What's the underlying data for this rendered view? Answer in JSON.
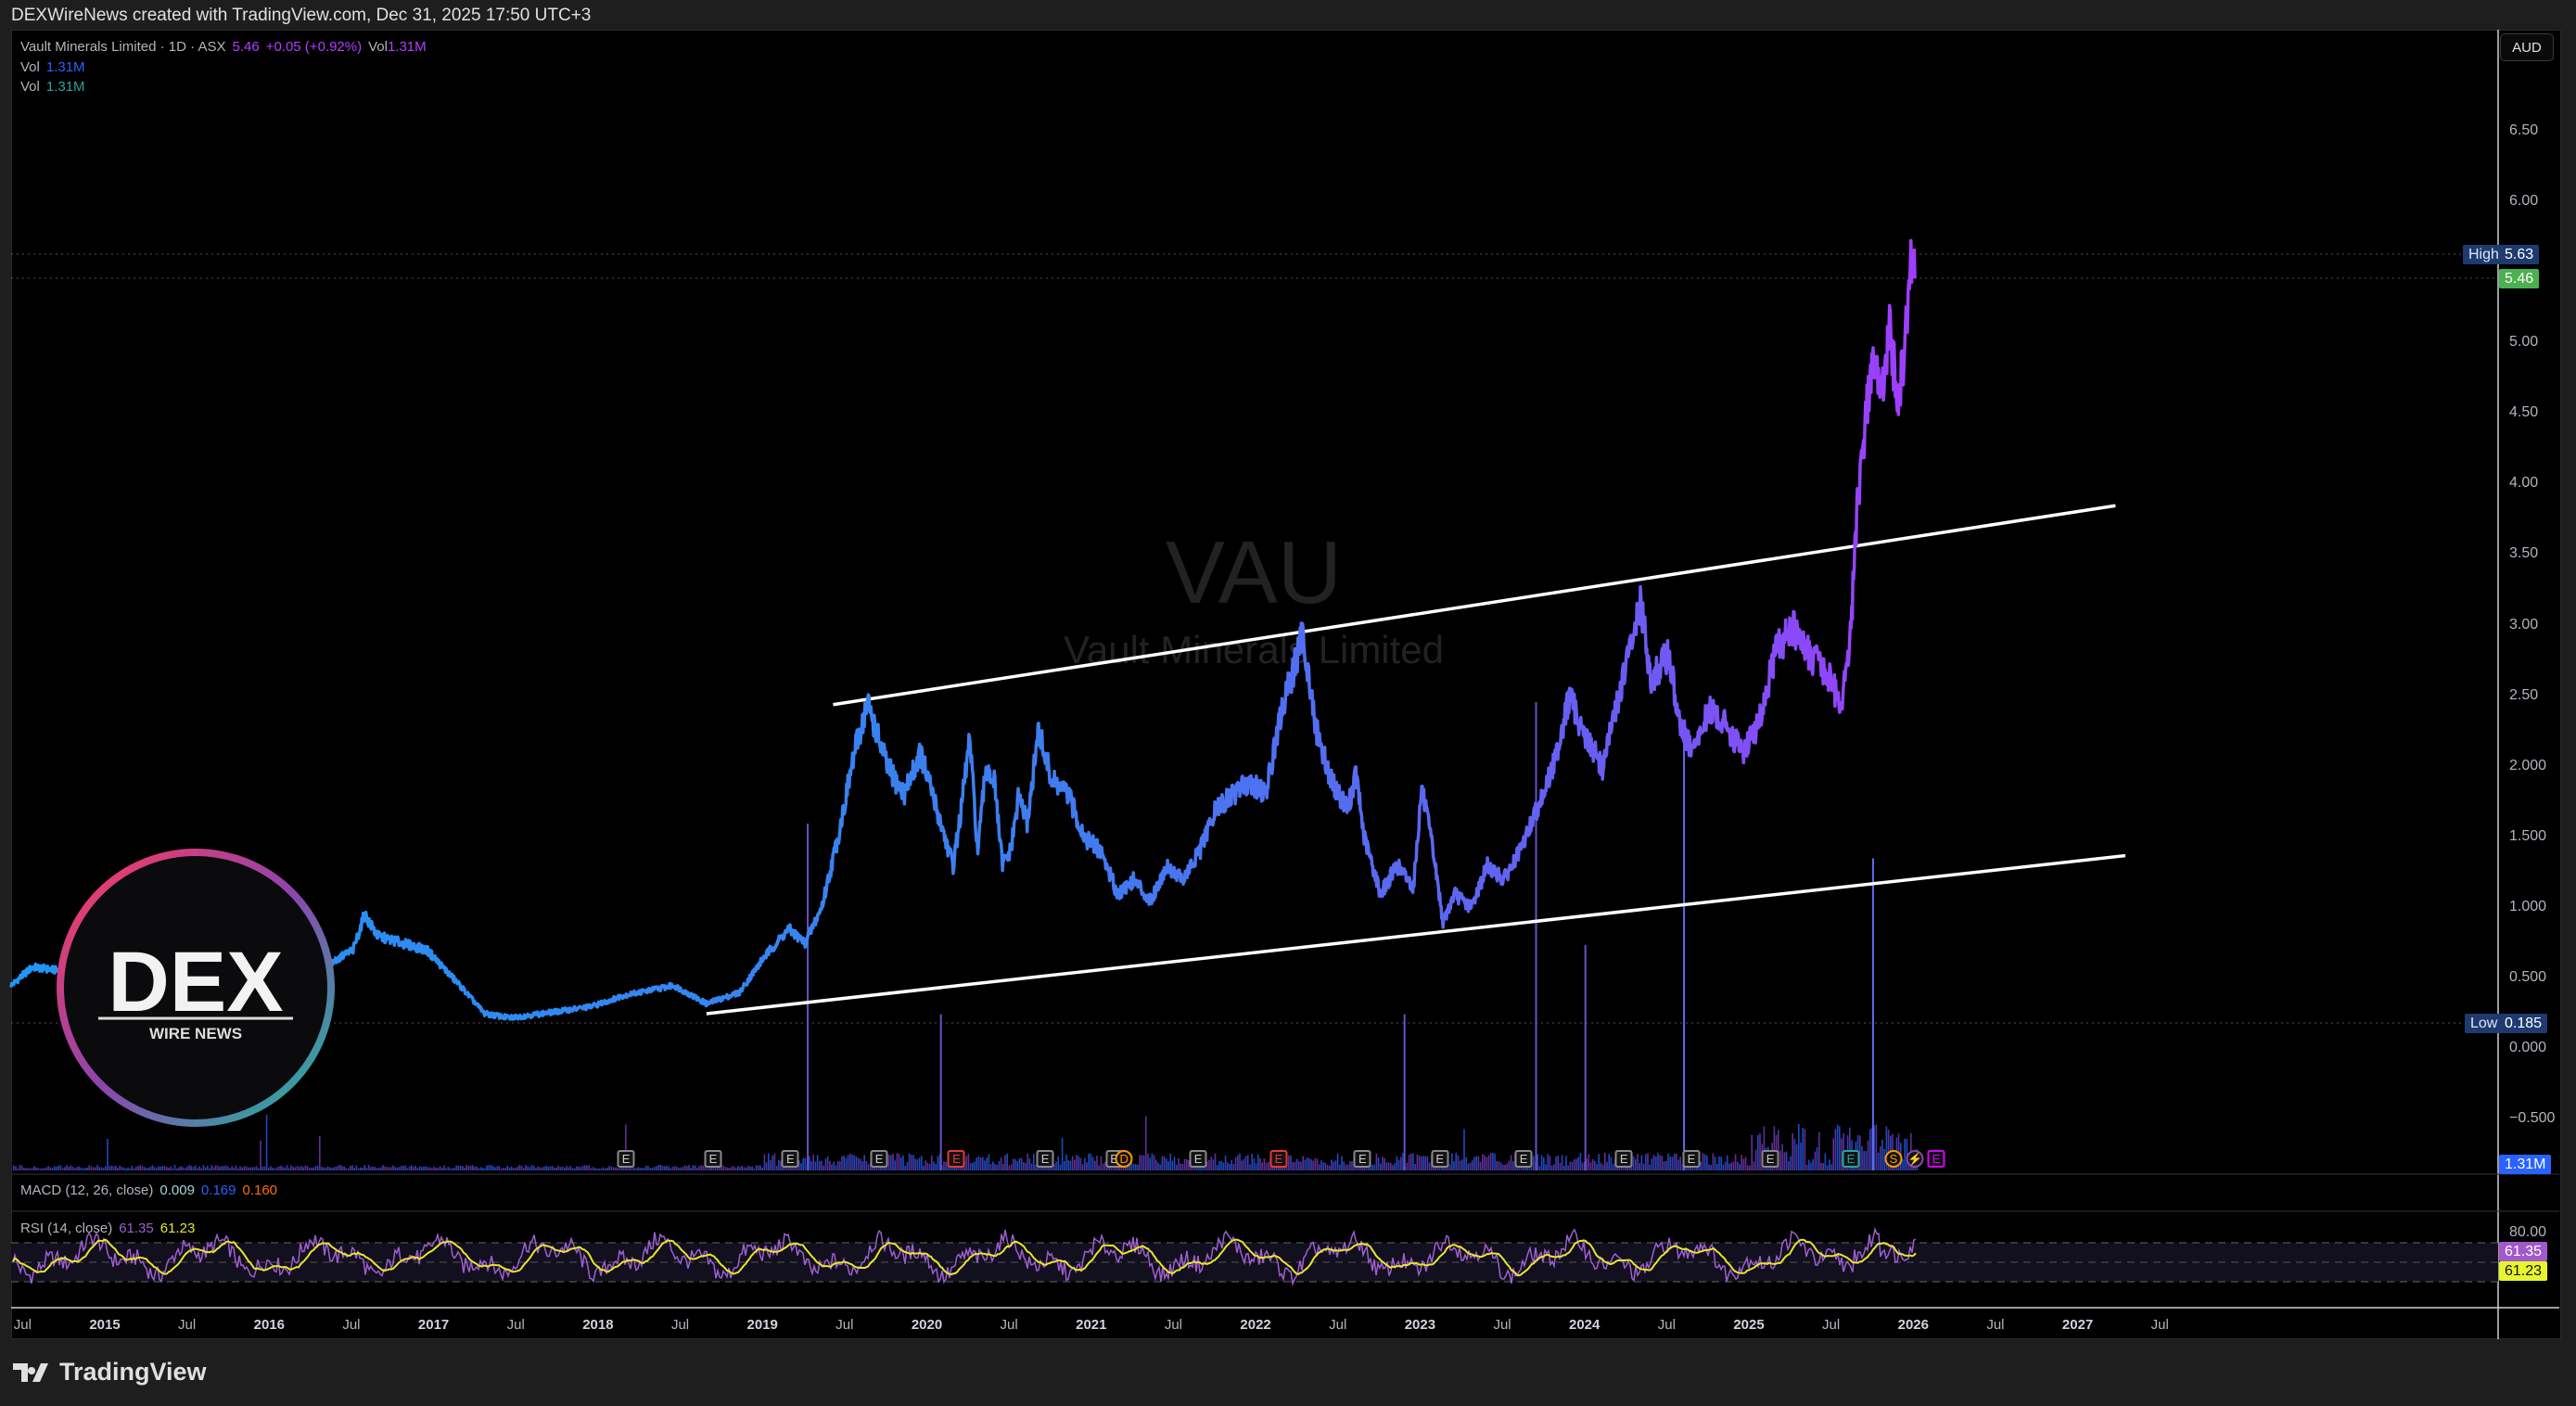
{
  "header": {
    "credit": "DEXWireNews created with TradingView.com, Dec 31, 2025 17:50 UTC+3"
  },
  "legend": {
    "symbol": "Vault Minerals Limited · 1D · ASX",
    "price": "5.46",
    "change": "+0.05 (+0.92%)",
    "vol_label": "Vol",
    "vol_value": "1.31M",
    "vol2_label": "Vol",
    "vol2_value": "1.31M",
    "vol3_label": "Vol",
    "vol3_value": "1.31M"
  },
  "currency_button": "AUD",
  "watermark": {
    "ticker": "VAU",
    "name": "Vault Minerals Limited"
  },
  "logo": {
    "main": "DEX",
    "sub": "WIRE NEWS"
  },
  "price_axis": [
    "6.50",
    "6.00",
    "5.00",
    "4.50",
    "4.00",
    "3.50",
    "3.00",
    "2.50",
    "2.000",
    "1.500",
    "1.000",
    "0.500",
    "0.000",
    "−0.500"
  ],
  "tags": {
    "high_label": "High",
    "high_value": "5.63",
    "last_value": "5.46",
    "low_label": "Low",
    "low_value": "0.185",
    "volume_value": "1.31M",
    "rsi_axis": "80.00",
    "rsi_value": "61.35",
    "rsi_ma_value": "61.23"
  },
  "macd": {
    "label": "MACD (12, 26, close)",
    "hist": "0.009",
    "macd": "0.169",
    "signal": "0.160"
  },
  "rsi": {
    "label": "RSI (14, close)",
    "value": "61.35",
    "ma": "61.23"
  },
  "time_axis": [
    {
      "t": 2014.5,
      "label": "Jul"
    },
    {
      "t": 2015,
      "label": "2015"
    },
    {
      "t": 2015.5,
      "label": "Jul"
    },
    {
      "t": 2016,
      "label": "2016"
    },
    {
      "t": 2016.5,
      "label": "Jul"
    },
    {
      "t": 2017,
      "label": "2017"
    },
    {
      "t": 2017.5,
      "label": "Jul"
    },
    {
      "t": 2018,
      "label": "2018"
    },
    {
      "t": 2018.5,
      "label": "Jul"
    },
    {
      "t": 2019,
      "label": "2019"
    },
    {
      "t": 2019.5,
      "label": "Jul"
    },
    {
      "t": 2020,
      "label": "2020"
    },
    {
      "t": 2020.5,
      "label": "Jul"
    },
    {
      "t": 2021,
      "label": "2021"
    },
    {
      "t": 2021.5,
      "label": "Jul"
    },
    {
      "t": 2022,
      "label": "2022"
    },
    {
      "t": 2022.5,
      "label": "Jul"
    },
    {
      "t": 2023,
      "label": "2023"
    },
    {
      "t": 2023.5,
      "label": "Jul"
    },
    {
      "t": 2024,
      "label": "2024"
    },
    {
      "t": 2024.5,
      "label": "Jul"
    },
    {
      "t": 2025,
      "label": "2025"
    },
    {
      "t": 2025.5,
      "label": "Jul"
    },
    {
      "t": 2026,
      "label": "2026"
    },
    {
      "t": 2026.5,
      "label": "Jul"
    },
    {
      "t": 2027,
      "label": "2027"
    },
    {
      "t": 2027.5,
      "label": "Jul"
    }
  ],
  "events": [
    {
      "t": 2018.17,
      "glyph": "E",
      "kind": "earnings"
    },
    {
      "t": 2018.7,
      "glyph": "E",
      "kind": "earnings"
    },
    {
      "t": 2019.17,
      "glyph": "E",
      "kind": "earnings"
    },
    {
      "t": 2019.71,
      "glyph": "E",
      "kind": "earnings"
    },
    {
      "t": 2020.18,
      "glyph": "E",
      "kind": "earnings-miss"
    },
    {
      "t": 2020.72,
      "glyph": "E",
      "kind": "earnings"
    },
    {
      "t": 2021.14,
      "glyph": "E",
      "kind": "earnings"
    },
    {
      "t": 2021.2,
      "glyph": "D",
      "kind": "dividend"
    },
    {
      "t": 2021.65,
      "glyph": "E",
      "kind": "earnings"
    },
    {
      "t": 2022.14,
      "glyph": "E",
      "kind": "earnings-miss"
    },
    {
      "t": 2022.65,
      "glyph": "E",
      "kind": "earnings"
    },
    {
      "t": 2023.12,
      "glyph": "E",
      "kind": "earnings"
    },
    {
      "t": 2023.63,
      "glyph": "E",
      "kind": "earnings"
    },
    {
      "t": 2024.24,
      "glyph": "E",
      "kind": "earnings"
    },
    {
      "t": 2024.65,
      "glyph": "E",
      "kind": "earnings"
    },
    {
      "t": 2025.13,
      "glyph": "E",
      "kind": "earnings"
    },
    {
      "t": 2025.62,
      "glyph": "E",
      "kind": "earnings-beat"
    },
    {
      "t": 2025.88,
      "glyph": "S",
      "kind": "split"
    },
    {
      "t": 2026.01,
      "glyph": "⚡",
      "kind": "news"
    },
    {
      "t": 2026.14,
      "glyph": "E",
      "kind": "earnings-upcoming"
    }
  ],
  "colors": {
    "price_start": "#2196f3",
    "price_mid": "#5b6cf0",
    "price_end": "#a23cff",
    "high_tag": "#1e3a6e",
    "last_tag": "#4caf50",
    "vol_tag": "#2962ff",
    "rsi_line": "#9c5fd0",
    "rsi_ma": "#e6e62c",
    "macd_hist": "#a5d6d6",
    "macd": "#2962ff",
    "signal": "#ff6d00"
  },
  "footer": {
    "brand": "TradingView"
  },
  "chart_data": {
    "type": "line",
    "title": "Vault Minerals Limited (VAU) · 1D · ASX",
    "ylabel": "AUD",
    "xlim": [
      2014.45,
      2027.9
    ],
    "ylim": [
      -0.6,
      6.9
    ],
    "series": [
      {
        "name": "VAU close",
        "points": [
          [
            2014.43,
            0.45
          ],
          [
            2014.56,
            0.58
          ],
          [
            2014.76,
            0.55
          ],
          [
            2014.96,
            0.6
          ],
          [
            2015.16,
            0.75
          ],
          [
            2015.36,
            0.6
          ],
          [
            2015.56,
            0.5
          ],
          [
            2015.76,
            0.55
          ],
          [
            2015.96,
            0.7
          ],
          [
            2016.16,
            0.55
          ],
          [
            2016.36,
            0.6
          ],
          [
            2016.51,
            0.7
          ],
          [
            2016.58,
            0.95
          ],
          [
            2016.66,
            0.8
          ],
          [
            2016.81,
            0.75
          ],
          [
            2016.96,
            0.7
          ],
          [
            2017.16,
            0.45
          ],
          [
            2017.31,
            0.25
          ],
          [
            2017.46,
            0.22
          ],
          [
            2017.66,
            0.25
          ],
          [
            2017.96,
            0.3
          ],
          [
            2018.16,
            0.38
          ],
          [
            2018.46,
            0.45
          ],
          [
            2018.66,
            0.32
          ],
          [
            2018.86,
            0.4
          ],
          [
            2019.01,
            0.65
          ],
          [
            2019.16,
            0.85
          ],
          [
            2019.26,
            0.75
          ],
          [
            2019.36,
            1.0
          ],
          [
            2019.46,
            1.5
          ],
          [
            2019.56,
            2.1
          ],
          [
            2019.64,
            2.45
          ],
          [
            2019.76,
            2.0
          ],
          [
            2019.86,
            1.8
          ],
          [
            2019.96,
            2.1
          ],
          [
            2020.06,
            1.7
          ],
          [
            2020.16,
            1.3
          ],
          [
            2020.21,
            1.7
          ],
          [
            2020.26,
            2.2
          ],
          [
            2020.31,
            1.4
          ],
          [
            2020.36,
            2.0
          ],
          [
            2020.41,
            1.9
          ],
          [
            2020.46,
            1.3
          ],
          [
            2020.51,
            1.4
          ],
          [
            2020.56,
            1.8
          ],
          [
            2020.61,
            1.6
          ],
          [
            2020.68,
            2.25
          ],
          [
            2020.76,
            1.9
          ],
          [
            2020.86,
            1.8
          ],
          [
            2020.96,
            1.5
          ],
          [
            2021.06,
            1.4
          ],
          [
            2021.16,
            1.1
          ],
          [
            2021.26,
            1.2
          ],
          [
            2021.36,
            1.05
          ],
          [
            2021.46,
            1.3
          ],
          [
            2021.56,
            1.2
          ],
          [
            2021.66,
            1.4
          ],
          [
            2021.76,
            1.7
          ],
          [
            2021.86,
            1.8
          ],
          [
            2021.96,
            1.9
          ],
          [
            2022.06,
            1.8
          ],
          [
            2022.16,
            2.4
          ],
          [
            2022.21,
            2.6
          ],
          [
            2022.29,
            2.95
          ],
          [
            2022.36,
            2.3
          ],
          [
            2022.46,
            1.9
          ],
          [
            2022.56,
            1.7
          ],
          [
            2022.61,
            1.95
          ],
          [
            2022.66,
            1.5
          ],
          [
            2022.76,
            1.1
          ],
          [
            2022.86,
            1.3
          ],
          [
            2022.96,
            1.15
          ],
          [
            2023.01,
            1.85
          ],
          [
            2023.08,
            1.4
          ],
          [
            2023.14,
            0.9
          ],
          [
            2023.21,
            1.1
          ],
          [
            2023.31,
            1.0
          ],
          [
            2023.41,
            1.3
          ],
          [
            2023.51,
            1.2
          ],
          [
            2023.61,
            1.4
          ],
          [
            2023.71,
            1.7
          ],
          [
            2023.81,
            2.0
          ],
          [
            2023.91,
            2.5
          ],
          [
            2024.01,
            2.2
          ],
          [
            2024.11,
            2.0
          ],
          [
            2024.21,
            2.5
          ],
          [
            2024.29,
            2.9
          ],
          [
            2024.34,
            3.15
          ],
          [
            2024.41,
            2.6
          ],
          [
            2024.51,
            2.8
          ],
          [
            2024.58,
            2.3
          ],
          [
            2024.66,
            2.1
          ],
          [
            2024.76,
            2.4
          ],
          [
            2024.86,
            2.3
          ],
          [
            2024.96,
            2.1
          ],
          [
            2025.06,
            2.3
          ],
          [
            2025.16,
            2.8
          ],
          [
            2025.26,
            3.0
          ],
          [
            2025.36,
            2.8
          ],
          [
            2025.46,
            2.7
          ],
          [
            2025.56,
            2.45
          ],
          [
            2025.61,
            2.8
          ],
          [
            2025.66,
            3.8
          ],
          [
            2025.71,
            4.5
          ],
          [
            2025.76,
            4.9
          ],
          [
            2025.81,
            4.6
          ],
          [
            2025.86,
            5.1
          ],
          [
            2025.91,
            4.5
          ],
          [
            2025.96,
            5.2
          ],
          [
            2025.99,
            5.6
          ],
          [
            2026.01,
            5.46
          ]
        ]
      }
    ],
    "trendlines": [
      {
        "name": "channel-upper",
        "from": [
          2019.43,
          2.44
        ],
        "to": [
          2027.23,
          3.85
        ]
      },
      {
        "name": "channel-lower",
        "from": [
          2018.66,
          0.25
        ],
        "to": [
          2027.29,
          1.37
        ]
      }
    ],
    "high": 5.63,
    "low": 0.185,
    "last": 5.46,
    "volume_spikes": [
      [
        2019.27,
        1.0
      ],
      [
        2020.08,
        0.45
      ],
      [
        2023.7,
        1.35
      ],
      [
        2024.0,
        0.65
      ],
      [
        2024.6,
        1.25
      ],
      [
        2025.75,
        0.9
      ],
      [
        2022.9,
        0.45
      ]
    ],
    "rsi_levels": [
      70,
      50,
      30
    ]
  }
}
